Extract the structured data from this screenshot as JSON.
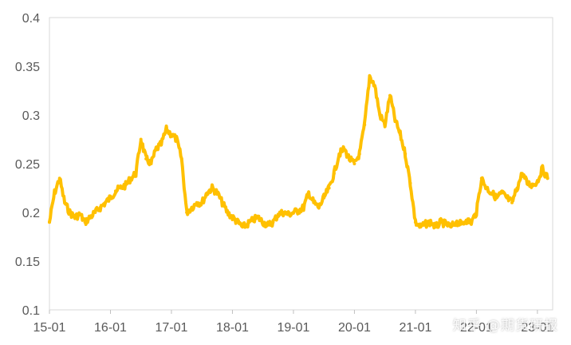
{
  "chart_data": {
    "type": "line",
    "title": "",
    "xlabel": "",
    "ylabel": "",
    "ylim": [
      0.1,
      0.4
    ],
    "yticks": [
      "0.1",
      "0.15",
      "0.2",
      "0.25",
      "0.3",
      "0.35",
      "0.4"
    ],
    "xticks": [
      "15-01",
      "16-01",
      "17-01",
      "18-01",
      "19-01",
      "20-01",
      "21-01",
      "22-01",
      "23-01"
    ],
    "grid": false,
    "legend": "none",
    "series": [
      {
        "color": "#FFC000",
        "points": [
          [
            "2015-01",
            0.19
          ],
          [
            "2015-02",
            0.22
          ],
          [
            "2015-03",
            0.235
          ],
          [
            "2015-04",
            0.21
          ],
          [
            "2015-05",
            0.2
          ],
          [
            "2015-06",
            0.195
          ],
          [
            "2015-07",
            0.198
          ],
          [
            "2015-08",
            0.19
          ],
          [
            "2015-09",
            0.195
          ],
          [
            "2015-10",
            0.2
          ],
          [
            "2015-11",
            0.205
          ],
          [
            "2015-12",
            0.21
          ],
          [
            "2016-01",
            0.215
          ],
          [
            "2016-02",
            0.222
          ],
          [
            "2016-03",
            0.225
          ],
          [
            "2016-04",
            0.228
          ],
          [
            "2016-05",
            0.235
          ],
          [
            "2016-06",
            0.24
          ],
          [
            "2016-07",
            0.275
          ],
          [
            "2016-08",
            0.255
          ],
          [
            "2016-09",
            0.25
          ],
          [
            "2016-10",
            0.265
          ],
          [
            "2016-11",
            0.27
          ],
          [
            "2016-12",
            0.285
          ],
          [
            "2017-01",
            0.28
          ],
          [
            "2017-02",
            0.275
          ],
          [
            "2017-03",
            0.255
          ],
          [
            "2017-04",
            0.2
          ],
          [
            "2017-05",
            0.205
          ],
          [
            "2017-06",
            0.21
          ],
          [
            "2017-07",
            0.21
          ],
          [
            "2017-08",
            0.22
          ],
          [
            "2017-09",
            0.225
          ],
          [
            "2017-10",
            0.22
          ],
          [
            "2017-11",
            0.21
          ],
          [
            "2017-12",
            0.2
          ],
          [
            "2018-01",
            0.195
          ],
          [
            "2018-02",
            0.19
          ],
          [
            "2018-03",
            0.185
          ],
          [
            "2018-04",
            0.188
          ],
          [
            "2018-05",
            0.192
          ],
          [
            "2018-06",
            0.195
          ],
          [
            "2018-07",
            0.19
          ],
          [
            "2018-08",
            0.187
          ],
          [
            "2018-09",
            0.19
          ],
          [
            "2018-10",
            0.198
          ],
          [
            "2018-11",
            0.2
          ],
          [
            "2018-12",
            0.198
          ],
          [
            "2019-01",
            0.2
          ],
          [
            "2019-02",
            0.202
          ],
          [
            "2019-03",
            0.205
          ],
          [
            "2019-04",
            0.22
          ],
          [
            "2019-05",
            0.21
          ],
          [
            "2019-06",
            0.205
          ],
          [
            "2019-07",
            0.215
          ],
          [
            "2019-08",
            0.225
          ],
          [
            "2019-09",
            0.24
          ],
          [
            "2019-10",
            0.26
          ],
          [
            "2019-11",
            0.265
          ],
          [
            "2019-12",
            0.255
          ],
          [
            "2020-01",
            0.25
          ],
          [
            "2020-02",
            0.26
          ],
          [
            "2020-03",
            0.29
          ],
          [
            "2020-04",
            0.34
          ],
          [
            "2020-05",
            0.33
          ],
          [
            "2020-06",
            0.3
          ],
          [
            "2020-07",
            0.29
          ],
          [
            "2020-08",
            0.32
          ],
          [
            "2020-09",
            0.295
          ],
          [
            "2020-10",
            0.28
          ],
          [
            "2020-11",
            0.26
          ],
          [
            "2020-12",
            0.23
          ],
          [
            "2021-01",
            0.19
          ],
          [
            "2021-02",
            0.185
          ],
          [
            "2021-03",
            0.188
          ],
          [
            "2021-04",
            0.19
          ],
          [
            "2021-05",
            0.185
          ],
          [
            "2021-06",
            0.19
          ],
          [
            "2021-07",
            0.188
          ],
          [
            "2021-08",
            0.185
          ],
          [
            "2021-09",
            0.19
          ],
          [
            "2021-10",
            0.188
          ],
          [
            "2021-11",
            0.192
          ],
          [
            "2021-12",
            0.19
          ],
          [
            "2022-01",
            0.2
          ],
          [
            "2022-02",
            0.235
          ],
          [
            "2022-03",
            0.225
          ],
          [
            "2022-04",
            0.22
          ],
          [
            "2022-05",
            0.215
          ],
          [
            "2022-06",
            0.22
          ],
          [
            "2022-07",
            0.215
          ],
          [
            "2022-08",
            0.21
          ],
          [
            "2022-09",
            0.225
          ],
          [
            "2022-10",
            0.24
          ],
          [
            "2022-11",
            0.23
          ],
          [
            "2022-12",
            0.228
          ],
          [
            "2023-01",
            0.232
          ],
          [
            "2023-02",
            0.245
          ],
          [
            "2023-03",
            0.235
          ]
        ]
      }
    ]
  },
  "watermark": "知乎 @期货研报"
}
